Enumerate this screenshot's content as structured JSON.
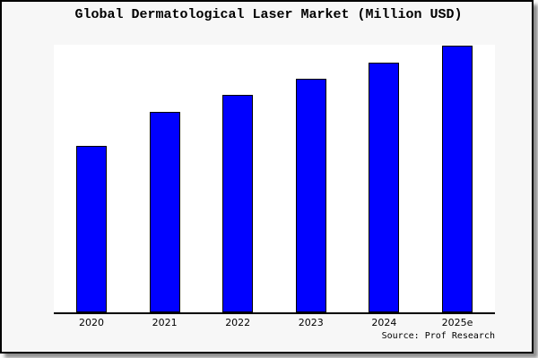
{
  "title": "Global Dermatological Laser Market (Million USD)",
  "source_note": "Source: Prof Research",
  "colors": {
    "bar_fill": "#0000ff",
    "bar_edge": "#000000",
    "frame_background": "#f7f7f7",
    "plot_background": "#ffffff",
    "frame_border": "#000000",
    "axis": "#000000",
    "shadow": "#8e8e8e",
    "text": "#000000"
  },
  "chart_data": {
    "type": "bar",
    "title": "Global Dermatological Laser Market (Million USD)",
    "categories": [
      "2020",
      "2021",
      "2022",
      "2023",
      "2024",
      "2025e"
    ],
    "values": [
      186.5,
      223.8,
      243,
      261.5,
      279.5,
      298
    ],
    "value_units": "relative height (chart shows no y-axis scale)",
    "xlabel": "",
    "ylabel": "",
    "ylim": [
      0,
      299
    ],
    "grid": false,
    "legend": false,
    "y_axis_shown": false,
    "annotations": [
      "Source: Prof Research"
    ]
  }
}
